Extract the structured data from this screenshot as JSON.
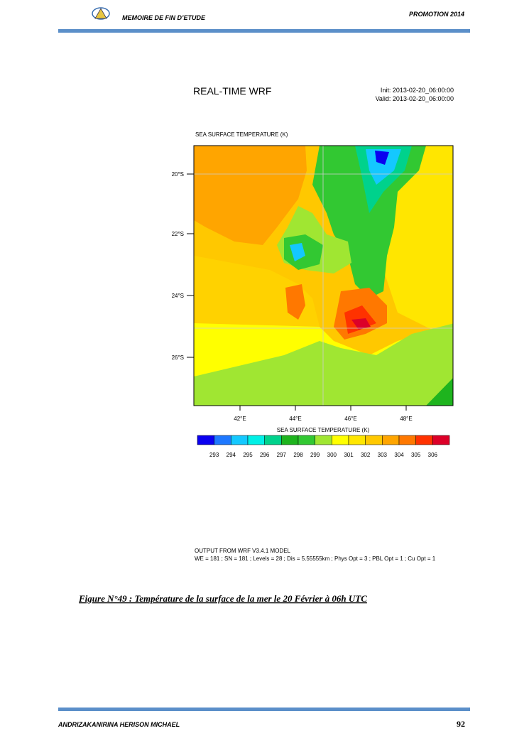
{
  "header": {
    "title": "MEMOIRE DE FIN D’ETUDE",
    "promotion": "PROMOTION 2014"
  },
  "figure": {
    "title": "REAL-TIME WRF",
    "init": "Init: 2013-02-20_06:00:00",
    "valid": "Valid: 2013-02-20_06:00:00",
    "map_title": "SEA SURFACE TEMPERATURE   (K)",
    "lat_labels": [
      "20°S",
      "22°S",
      "24°S",
      "26°S"
    ],
    "lon_labels": [
      "42°E",
      "44°E",
      "46°E",
      "48°E"
    ],
    "colorbar_title": "SEA SURFACE TEMPERATURE  (K)",
    "colorbar_labels": [
      "293",
      "294",
      "295",
      "296",
      "297",
      "298",
      "299",
      "300",
      "301",
      "302",
      "303",
      "304",
      "305",
      "306"
    ],
    "output_lines": [
      "OUTPUT FROM WRF V3.4.1 MODEL",
      "WE = 181 ; SN = 181 ; Levels = 28 ; Dis = 5.55555km ; Phys Opt = 3 ; PBL Opt = 1 ; Cu Opt = 1"
    ]
  },
  "caption": "Figure N°49 : Température de la surface de la mer le 20 Février à 06h UTC",
  "footer": {
    "author": "ANDRIZAKANIRINA HERISON MICHAEL",
    "page": "92"
  }
}
